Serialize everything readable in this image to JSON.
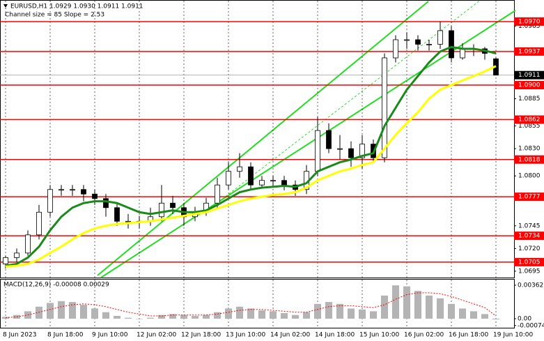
{
  "chart_data": {
    "type": "candlestick",
    "title": "EURUSD,H1  1.0929 1.0930 1.0911 1.0911",
    "subtitle": "Channel size = 85 Slope = 2.53",
    "categories": [
      "8 Jun 2023",
      null,
      null,
      null,
      "8 Jun 18:00",
      null,
      null,
      null,
      "9 Jun 10:00",
      null,
      null,
      null,
      "12 Jun 02:00",
      null,
      null,
      null,
      "12 Jun 18:00",
      null,
      null,
      null,
      "13 Jun 10:00",
      null,
      null,
      null,
      "14 Jun 02:00",
      null,
      null,
      null,
      "14 Jun 18:00",
      null,
      null,
      null,
      "15 Jun 10:00",
      null,
      null,
      null,
      "16 Jun 02:00",
      null,
      null,
      null,
      "16 Jun 18:00",
      null,
      null,
      null,
      "19 Jun 10:00"
    ],
    "open": [
      1.0703,
      1.071,
      1.0715,
      1.0735,
      1.076,
      1.0785,
      1.0785,
      1.0785,
      1.078,
      1.0775,
      1.0765,
      1.075,
      1.075,
      1.075,
      1.0755,
      1.077,
      1.0765,
      1.0755,
      1.076,
      1.077,
      1.079,
      1.0805,
      1.081,
      1.079,
      1.0795,
      1.0795,
      1.079,
      1.0785,
      1.0805,
      1.085,
      1.083,
      1.083,
      1.082,
      1.0835,
      1.082,
      1.093,
      1.095,
      1.095,
      1.0945,
      1.0945,
      1.096,
      1.093,
      1.094,
      1.094,
      1.0929
    ],
    "high": [
      1.0712,
      1.072,
      1.074,
      1.0768,
      1.079,
      1.079,
      1.079,
      1.079,
      1.0785,
      1.078,
      1.077,
      1.0758,
      1.0756,
      1.0765,
      1.079,
      1.0778,
      1.077,
      1.0766,
      1.0776,
      1.0798,
      1.0815,
      1.0825,
      1.0815,
      1.08,
      1.08,
      1.08,
      1.0795,
      1.0812,
      1.0865,
      1.0858,
      1.0845,
      1.0838,
      1.0845,
      1.084,
      1.0935,
      1.0955,
      1.0958,
      1.0955,
      1.095,
      1.097,
      1.0965,
      1.0946,
      1.0945,
      1.0942,
      1.093
    ],
    "low": [
      1.0698,
      1.0705,
      1.0712,
      1.073,
      1.0755,
      1.0778,
      1.0778,
      1.0772,
      1.0768,
      1.0755,
      1.0745,
      1.0742,
      1.0742,
      1.0745,
      1.075,
      1.0758,
      1.0745,
      1.075,
      1.0756,
      1.0765,
      1.0785,
      1.0798,
      1.0785,
      1.0786,
      1.0788,
      1.0784,
      1.0778,
      1.078,
      1.08,
      1.0825,
      1.0818,
      1.081,
      1.0808,
      1.0815,
      1.0815,
      1.0925,
      1.094,
      1.0938,
      1.0938,
      1.094,
      1.0925,
      1.0928,
      1.0932,
      1.0928,
      1.0911
    ],
    "close": [
      1.071,
      1.0715,
      1.0735,
      1.076,
      1.0785,
      1.0785,
      1.0785,
      1.078,
      1.0775,
      1.0765,
      1.075,
      1.075,
      1.075,
      1.0755,
      1.077,
      1.0765,
      1.0755,
      1.076,
      1.077,
      1.079,
      1.0805,
      1.081,
      1.079,
      1.0795,
      1.0795,
      1.079,
      1.0785,
      1.0805,
      1.085,
      1.083,
      1.083,
      1.082,
      1.0835,
      1.082,
      1.093,
      1.095,
      1.095,
      1.0945,
      1.0945,
      1.096,
      1.093,
      1.094,
      1.094,
      1.0935,
      1.0911
    ],
    "up_color": "#ffffff",
    "down_color": "#000000",
    "series": [
      {
        "color": "#1a8a1a",
        "values": [
          1.0701,
          1.0703,
          1.071,
          1.0722,
          1.074,
          1.0755,
          1.0765,
          1.077,
          1.0772,
          1.0772,
          1.077,
          1.0765,
          1.076,
          1.0758,
          1.076,
          1.0762,
          1.076,
          1.076,
          1.0762,
          1.0768,
          1.0775,
          1.0782,
          1.0785,
          1.0787,
          1.0788,
          1.0789,
          1.0788,
          1.0792,
          1.0805,
          1.081,
          1.0815,
          1.0818,
          1.0822,
          1.0825,
          1.0855,
          1.0875,
          1.0895,
          1.091,
          1.0925,
          1.0937,
          1.0942,
          1.094,
          1.094,
          1.0938,
          1.0935
        ]
      },
      {
        "color": "#ffff00",
        "values": [
          1.07,
          1.0701,
          1.0703,
          1.0708,
          1.0715,
          1.0722,
          1.073,
          1.0737,
          1.0742,
          1.0745,
          1.0747,
          1.0748,
          1.0749,
          1.075,
          1.0752,
          1.0754,
          1.0756,
          1.0758,
          1.076,
          1.0764,
          1.0768,
          1.0772,
          1.0775,
          1.0777,
          1.0779,
          1.078,
          1.0782,
          1.0787,
          1.0795,
          1.08,
          1.0805,
          1.0808,
          1.0812,
          1.0815,
          1.083,
          1.0845,
          1.0858,
          1.087,
          1.0885,
          1.0895,
          1.09,
          1.0905,
          1.091,
          1.0915,
          1.0921
        ]
      }
    ],
    "ylim": [
      1.0688,
      1.0993
    ],
    "yticks": [
      {
        "value": 1.0965,
        "label": "1.0965"
      },
      {
        "value": 1.0885,
        "label": "1.0885"
      },
      {
        "value": 1.0855,
        "label": "1.0855"
      },
      {
        "value": 1.083,
        "label": "1.0830"
      },
      {
        "value": 1.08,
        "label": "1.0800"
      },
      {
        "value": 1.0745,
        "label": "1.0745"
      },
      {
        "value": 1.072,
        "label": "1.0720"
      },
      {
        "value": 1.0695,
        "label": "1.0695"
      }
    ],
    "level_color": "#ff0000",
    "levels": [
      {
        "value": 1.097,
        "label": "1.0970"
      },
      {
        "value": 1.0937,
        "label": "1.0937"
      },
      {
        "value": 1.09,
        "label": "1.0900"
      },
      {
        "value": 1.0862,
        "label": "1.0862"
      },
      {
        "value": 1.0818,
        "label": "1.0818"
      },
      {
        "value": 1.0777,
        "label": "1.0777"
      },
      {
        "value": 1.0734,
        "label": "1.0734"
      },
      {
        "value": 1.0705,
        "label": "1.0705"
      }
    ],
    "last_price": {
      "value": 1.0911,
      "label": "1.0911"
    },
    "grid": true,
    "macd": {
      "title": "MACD(12,26,9) -0.00008 0.00029",
      "histogram_color": "#b4b4b4",
      "signal_color": "#ff0000",
      "histogram": [
        0.0002,
        0.0004,
        0.0008,
        0.0013,
        0.0017,
        0.0019,
        0.0018,
        0.0015,
        0.0011,
        0.0007,
        0.0003,
        0.0001,
        0.0,
        0.0001,
        0.0004,
        0.0005,
        0.0004,
        0.0003,
        0.0004,
        0.0007,
        0.0011,
        0.0013,
        0.0011,
        0.0009,
        0.0008,
        0.0006,
        0.0004,
        0.0007,
        0.0016,
        0.0018,
        0.0016,
        0.0011,
        0.001,
        0.0008,
        0.0025,
        0.0036,
        0.0035,
        0.003,
        0.0025,
        0.0022,
        0.0016,
        0.0011,
        0.0008,
        0.0005,
        -8e-05
      ],
      "signal": [
        0.0001,
        0.0002,
        0.0004,
        0.0007,
        0.001,
        0.0013,
        0.0015,
        0.0016,
        0.0015,
        0.0013,
        0.001,
        0.0007,
        0.0005,
        0.0003,
        0.0003,
        0.0004,
        0.0004,
        0.0004,
        0.0004,
        0.0005,
        0.0007,
        0.0009,
        0.001,
        0.001,
        0.0009,
        0.0008,
        0.0007,
        0.0007,
        0.001,
        0.0013,
        0.0014,
        0.0014,
        0.0013,
        0.0012,
        0.0015,
        0.0021,
        0.0026,
        0.0028,
        0.0028,
        0.0027,
        0.0024,
        0.002,
        0.0016,
        0.0012,
        0.00029
      ],
      "ylim": [
        -0.00098,
        0.00422
      ],
      "yticks": [
        0.00362,
        {
          "value": 0,
          "label": "0.00"
        },
        -0.00074
      ]
    }
  }
}
